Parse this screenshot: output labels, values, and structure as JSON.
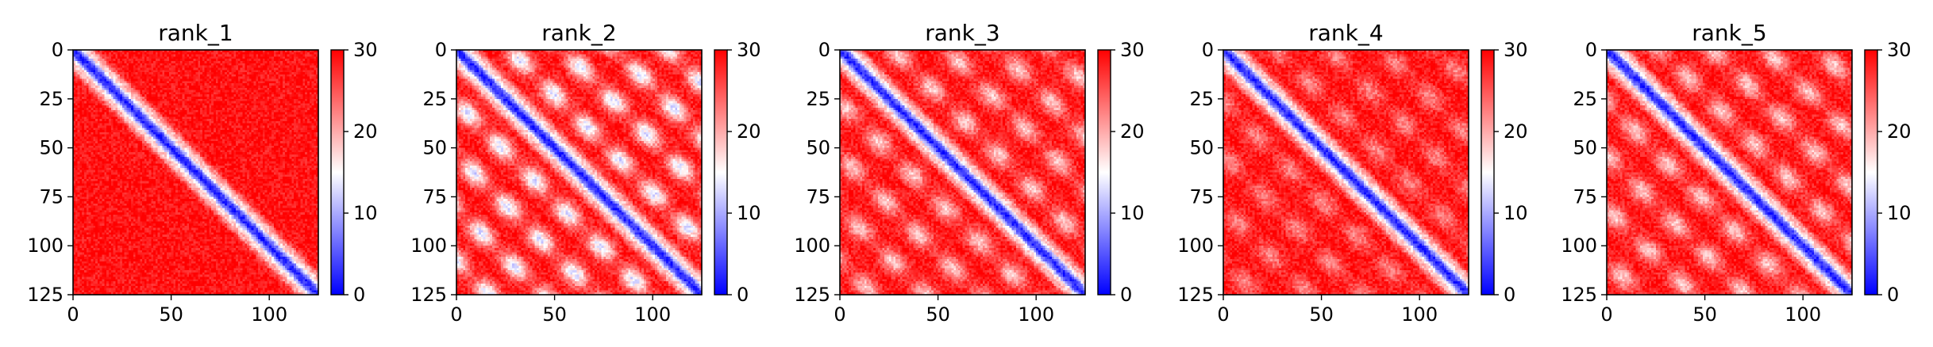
{
  "chart_data": [
    {
      "type": "heatmap",
      "title": "rank_1",
      "pattern": "diagonal_only",
      "x": {
        "range": [
          0,
          125
        ],
        "ticks": [
          0,
          50,
          100
        ]
      },
      "y": {
        "range": [
          0,
          125
        ],
        "ticks": [
          0,
          25,
          50,
          75,
          100,
          125
        ],
        "inverted": true
      },
      "colorbar": {
        "range": [
          0,
          30
        ],
        "ticks": [
          0,
          10,
          20,
          30
        ],
        "colormap": "bwr"
      }
    },
    {
      "type": "heatmap",
      "title": "rank_2",
      "pattern": "strong_offdiagonal_bands",
      "x": {
        "range": [
          0,
          125
        ],
        "ticks": [
          0,
          50,
          100
        ]
      },
      "y": {
        "range": [
          0,
          125
        ],
        "ticks": [
          0,
          25,
          50,
          75,
          100,
          125
        ],
        "inverted": true
      },
      "colorbar": {
        "range": [
          0,
          30
        ],
        "ticks": [
          0,
          10,
          20,
          30
        ],
        "colormap": "bwr"
      }
    },
    {
      "type": "heatmap",
      "title": "rank_3",
      "pattern": "moderate_offdiagonal_bands",
      "x": {
        "range": [
          0,
          125
        ],
        "ticks": [
          0,
          50,
          100
        ]
      },
      "y": {
        "range": [
          0,
          125
        ],
        "ticks": [
          0,
          25,
          50,
          75,
          100,
          125
        ],
        "inverted": true
      },
      "colorbar": {
        "range": [
          0,
          30
        ],
        "ticks": [
          0,
          10,
          20,
          30
        ],
        "colormap": "bwr"
      }
    },
    {
      "type": "heatmap",
      "title": "rank_4",
      "pattern": "weak_offdiagonal_bands",
      "x": {
        "range": [
          0,
          125
        ],
        "ticks": [
          0,
          50,
          100
        ]
      },
      "y": {
        "range": [
          0,
          125
        ],
        "ticks": [
          0,
          25,
          50,
          75,
          100,
          125
        ],
        "inverted": true
      },
      "colorbar": {
        "range": [
          0,
          30
        ],
        "ticks": [
          0,
          10,
          20,
          30
        ],
        "colormap": "bwr"
      }
    },
    {
      "type": "heatmap",
      "title": "rank_5",
      "pattern": "moderate_offdiagonal_bands",
      "x": {
        "range": [
          0,
          125
        ],
        "ticks": [
          0,
          50,
          100
        ]
      },
      "y": {
        "range": [
          0,
          125
        ],
        "ticks": [
          0,
          25,
          50,
          75,
          100,
          125
        ],
        "inverted": true
      },
      "colorbar": {
        "range": [
          0,
          30
        ],
        "ticks": [
          0,
          10,
          20,
          30
        ],
        "colormap": "bwr"
      }
    }
  ],
  "colors": {
    "low": "#0000ff",
    "mid": "#ffffff",
    "high": "#ff0000"
  }
}
